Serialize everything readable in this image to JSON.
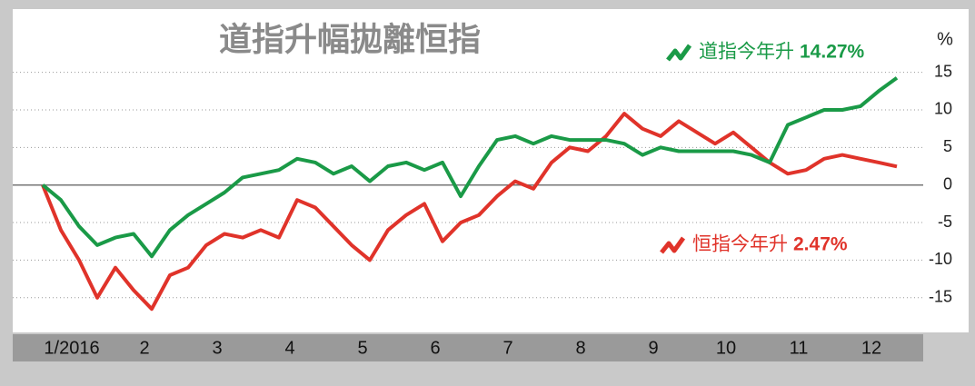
{
  "chart_data": {
    "type": "line",
    "title": "道指升幅拋離恒指",
    "ylabel": "%",
    "categories": [
      null,
      "1/2016",
      null,
      null,
      null,
      "2",
      null,
      null,
      null,
      "3",
      null,
      null,
      null,
      "4",
      null,
      null,
      null,
      "5",
      null,
      null,
      null,
      "6",
      null,
      null,
      null,
      "7",
      null,
      null,
      null,
      "8",
      null,
      null,
      null,
      "9",
      null,
      null,
      null,
      "10",
      null,
      null,
      null,
      "11",
      null,
      null,
      null,
      "12",
      null,
      null
    ],
    "series": [
      {
        "name": "道指今年升",
        "color": "#1a9a47",
        "values": [
          0,
          -2,
          -5.5,
          -8,
          -7,
          -6.5,
          -9.5,
          -6,
          -4,
          -2.5,
          -1,
          1,
          1.5,
          2,
          3.5,
          3,
          1.5,
          2.5,
          0.5,
          2.5,
          3,
          2,
          3,
          -1.5,
          2.5,
          6,
          6.5,
          5.5,
          6.5,
          6,
          6,
          6,
          5.5,
          4,
          5,
          4.5,
          4.5,
          4.5,
          4.5,
          4,
          3,
          8,
          9,
          10,
          10,
          10.5,
          12.5,
          14.27
        ],
        "value_labels": [
          null,
          null,
          null,
          null,
          null,
          null,
          null,
          null,
          null,
          null,
          null,
          null,
          null,
          null,
          null,
          null,
          null,
          null,
          null,
          null,
          null,
          null,
          null,
          null,
          null,
          null,
          null,
          null,
          null,
          null,
          null,
          null,
          null,
          null,
          null,
          null,
          null,
          null,
          null,
          null,
          null,
          null,
          null,
          null,
          null,
          null,
          null,
          "14.27%"
        ]
      },
      {
        "name": "恒指今年升",
        "color": "#e0332a",
        "values": [
          0,
          -6,
          -10,
          -15,
          -11,
          -14,
          -16.5,
          -12,
          -11,
          -8,
          -6.5,
          -7,
          -6,
          -7,
          -2,
          -3,
          -5.5,
          -8,
          -10,
          -6,
          -4,
          -2.5,
          -7.5,
          -5,
          -4,
          -1.5,
          0.5,
          -0.5,
          3,
          5,
          4.5,
          6.5,
          9.5,
          7.5,
          6.5,
          8.5,
          7,
          5.5,
          7,
          5,
          3,
          1.5,
          2,
          3.5,
          4,
          3.5,
          3,
          2.47
        ],
        "value_labels": [
          null,
          null,
          null,
          null,
          null,
          null,
          null,
          null,
          null,
          null,
          null,
          null,
          null,
          null,
          null,
          null,
          null,
          null,
          null,
          null,
          null,
          null,
          null,
          null,
          null,
          null,
          null,
          null,
          null,
          null,
          null,
          null,
          null,
          null,
          null,
          null,
          null,
          null,
          null,
          null,
          null,
          null,
          null,
          null,
          null,
          null,
          null,
          "2.47%"
        ]
      }
    ],
    "ylim": [
      -19.5,
      21
    ],
    "yticks": [
      15,
      10,
      5,
      0,
      -5,
      -10,
      -15
    ],
    "grid": true
  }
}
